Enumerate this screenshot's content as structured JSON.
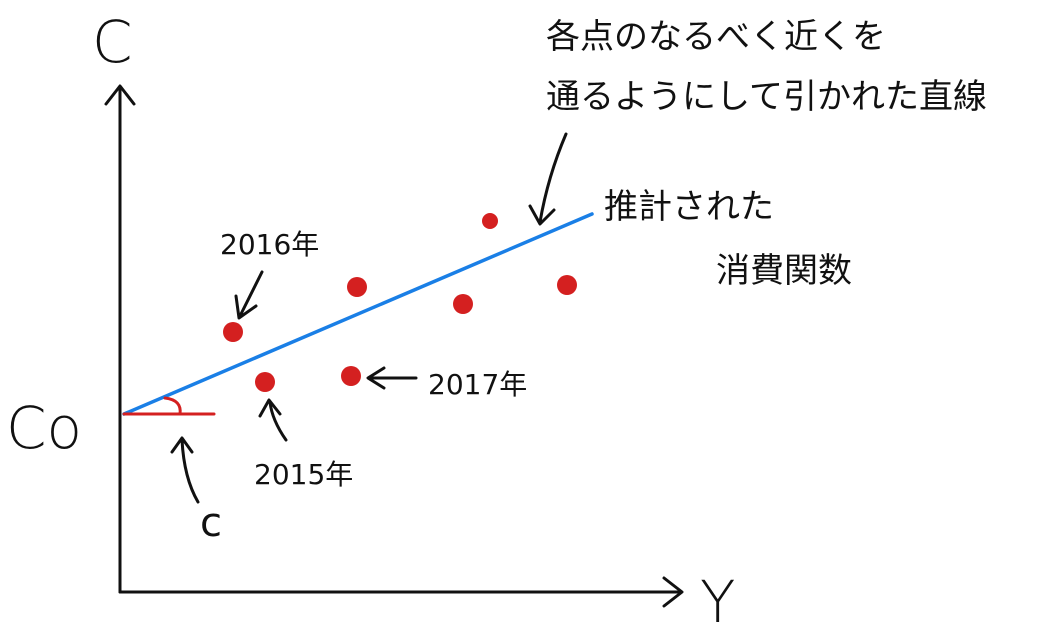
{
  "labels": {
    "y_axis": "C",
    "x_axis": "Y",
    "intercept": "Co",
    "slope": "c"
  },
  "years": {
    "y2015": "2015年",
    "y2016": "2016年",
    "y2017": "2017年"
  },
  "notes": {
    "fit_line_line1": "各点のなるべく近くを",
    "fit_line_line2": "通るようにして引かれた直線",
    "estimated_fn_line1": "推計された",
    "estimated_fn_line2": "消費関数"
  },
  "colors": {
    "axis": "#111111",
    "points": "#d42020",
    "fit_line": "#1a7fe6",
    "slope_mark": "#d42020"
  }
}
